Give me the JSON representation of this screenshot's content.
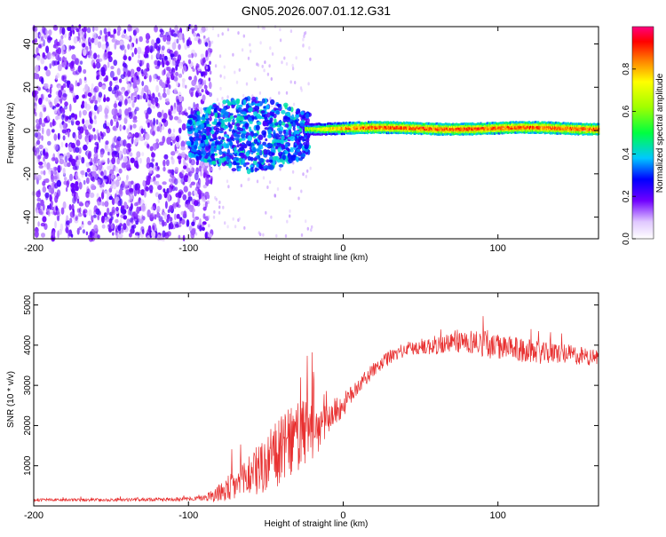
{
  "chart_data": [
    {
      "type": "heatmap",
      "title": "GN05.2026.007.01.12.G31",
      "xlabel": "Height of straight line (km)",
      "ylabel": "Frequency (Hz)",
      "xlim": [
        -200,
        165
      ],
      "ylim": [
        -50,
        48
      ],
      "xticks": [
        -200,
        -100,
        0,
        100
      ],
      "xtick_labels": [
        "-200",
        "-100",
        "0",
        "100"
      ],
      "yticks": [
        -40,
        -20,
        0,
        20,
        40
      ],
      "ytick_labels": [
        "-40",
        "-20",
        "0",
        "20",
        "40"
      ],
      "colorbar": {
        "label": "Normalized spectral amplitude",
        "range": [
          0,
          1
        ],
        "ticks": [
          0.0,
          0.2,
          0.4,
          0.6,
          0.8
        ],
        "tick_labels": [
          "0.0",
          "0.2",
          "0.4",
          "0.6",
          "0.8"
        ]
      },
      "regions": [
        {
          "x_range": [
            -200,
            -90
          ],
          "freq_spread": 48,
          "amplitude": 0.1,
          "note": "noise"
        },
        {
          "x_range": [
            -90,
            -25
          ],
          "freq_spread": 12,
          "amplitude": 0.3
        },
        {
          "x_range": [
            -25,
            165
          ],
          "freq_center": 1,
          "freq_width": 4,
          "amplitude": 0.9
        }
      ]
    },
    {
      "type": "line",
      "xlabel": "Height of straight line (km)",
      "ylabel": "SNR (10 * v/v)",
      "xlim": [
        -200,
        165
      ],
      "ylim": [
        0,
        5300
      ],
      "xticks": [
        -200,
        -100,
        0,
        100
      ],
      "xtick_labels": [
        "-200",
        "-100",
        "0",
        "100"
      ],
      "yticks": [
        1000,
        2000,
        3000,
        4000,
        5000
      ],
      "ytick_labels": [
        "1000",
        "2000",
        "3000",
        "4000",
        "5000"
      ],
      "color": "#e83030",
      "x": [
        -200,
        -150,
        -100,
        -90,
        -80,
        -70,
        -60,
        -50,
        -40,
        -30,
        -20,
        -10,
        0,
        10,
        20,
        30,
        40,
        50,
        60,
        70,
        80,
        90,
        100,
        110,
        120,
        130,
        140,
        150,
        160,
        165
      ],
      "values": [
        150,
        150,
        170,
        200,
        320,
        500,
        800,
        1000,
        1400,
        1700,
        1900,
        2200,
        2500,
        3000,
        3400,
        3700,
        3900,
        3950,
        4000,
        4050,
        4100,
        4050,
        3950,
        3900,
        3850,
        3800,
        3800,
        3750,
        3700,
        3700
      ],
      "noise": [
        60,
        60,
        80,
        120,
        400,
        700,
        1000,
        1300,
        1400,
        1500,
        1400,
        700,
        500,
        300,
        300,
        300,
        300,
        350,
        400,
        450,
        500,
        550,
        500,
        500,
        500,
        450,
        450,
        400,
        350,
        300
      ]
    }
  ]
}
